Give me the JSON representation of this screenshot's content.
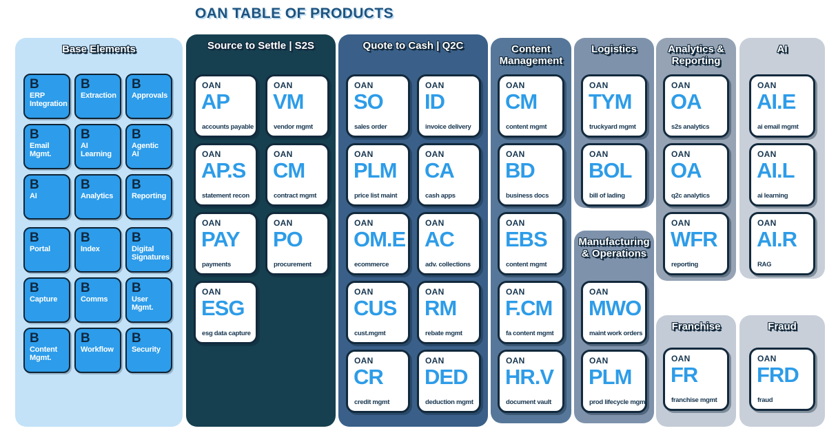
{
  "title": "OAN TABLE OF PRODUCTS",
  "colors": {
    "title_text": "#1E537F",
    "title_shadow": "#BFDDF2",
    "outline_navy": "#12293C",
    "tile_navy": "#16354F",
    "tile_code_blue": "#2D9CE8",
    "base_tile_blue": "#2D9CEA",
    "tile_bg": "#FFFFFF"
  },
  "panels": [
    {
      "id": "base-elements",
      "label": "Base Elements",
      "bg": "#C3E2F8",
      "tile_style": "base",
      "tiles": [
        {
          "symbol": "B",
          "label": "ERP Integration"
        },
        {
          "symbol": "B",
          "label": "Extraction"
        },
        {
          "symbol": "B",
          "label": "Approvals"
        },
        {
          "symbol": "B",
          "label": "Email Mgmt."
        },
        {
          "symbol": "B",
          "label": "AI Learning"
        },
        {
          "symbol": "B",
          "label": "Agentic AI"
        },
        {
          "symbol": "B",
          "label": "AI"
        },
        {
          "symbol": "B",
          "label": "Analytics"
        },
        {
          "symbol": "B",
          "label": "Reporting"
        },
        {
          "symbol": "B",
          "label": "Portal"
        },
        {
          "symbol": "B",
          "label": "Index"
        },
        {
          "symbol": "B",
          "label": "Digital Signatures"
        },
        {
          "symbol": "B",
          "label": "Capture"
        },
        {
          "symbol": "B",
          "label": "Comms"
        },
        {
          "symbol": "B",
          "label": "User Mgmt."
        },
        {
          "symbol": "B",
          "label": "Content Mgmt."
        },
        {
          "symbol": "B",
          "label": "Workflow"
        },
        {
          "symbol": "B",
          "label": "Security"
        }
      ]
    },
    {
      "id": "s2s",
      "label": "Source to Settle | S2S",
      "bg": "#16404F",
      "tile_style": "product",
      "tiles": [
        {
          "brand": "OAN",
          "code": "AP",
          "label": "accounts payable"
        },
        {
          "brand": "OAN",
          "code": "VM",
          "label": "vendor mgmt"
        },
        {
          "brand": "OAN",
          "code": "AP.S",
          "label": "statement recon"
        },
        {
          "brand": "OAN",
          "code": "CM",
          "label": "contract mgmt"
        },
        {
          "brand": "OAN",
          "code": "PAY",
          "label": "payments"
        },
        {
          "brand": "OAN",
          "code": "PO",
          "label": "procurement"
        },
        {
          "brand": "OAN",
          "code": "ESG",
          "label": "esg data capture"
        }
      ]
    },
    {
      "id": "q2c",
      "label": "Quote to Cash | Q2C",
      "bg": "#3A6089",
      "tile_style": "product",
      "tiles": [
        {
          "brand": "OAN",
          "code": "SO",
          "label": "sales order"
        },
        {
          "brand": "OAN",
          "code": "ID",
          "label": "invoice delivery"
        },
        {
          "brand": "OAN",
          "code": "PLM",
          "label": "price list maint"
        },
        {
          "brand": "OAN",
          "code": "CA",
          "label": "cash apps"
        },
        {
          "brand": "OAN",
          "code": "OM.E",
          "label": "ecommerce"
        },
        {
          "brand": "OAN",
          "code": "AC",
          "label": "adv. collections"
        },
        {
          "brand": "OAN",
          "code": "CUS",
          "label": "cust.mgmt"
        },
        {
          "brand": "OAN",
          "code": "RM",
          "label": "rebate mgmt"
        },
        {
          "brand": "OAN",
          "code": "CR",
          "label": "credit mgmt"
        },
        {
          "brand": "OAN",
          "code": "DED",
          "label": "deduction mgmt"
        }
      ]
    },
    {
      "id": "content-management",
      "label": "Content Management",
      "bg": "#567799",
      "tile_style": "product",
      "tiles": [
        {
          "brand": "OAN",
          "code": "CM",
          "label": "content mgmt"
        },
        {
          "brand": "OAN",
          "code": "BD",
          "label": "business docs"
        },
        {
          "brand": "OAN",
          "code": "EBS",
          "label": "content mgmt"
        },
        {
          "brand": "OAN",
          "code": "F.CM",
          "label": "fa content mgmt"
        },
        {
          "brand": "OAN",
          "code": "HR.V",
          "label": "document vault"
        }
      ]
    },
    {
      "id": "logistics",
      "label": "Logistics",
      "bg": "#7E92AB",
      "tile_style": "product",
      "tiles": [
        {
          "brand": "OAN",
          "code": "TYM",
          "label": "truckyard mgmt"
        },
        {
          "brand": "OAN",
          "code": "BOL",
          "label": "bill of lading"
        }
      ]
    },
    {
      "id": "manufacturing-operations",
      "label": "Manufacturing & Operations",
      "bg": "#7E92AB",
      "tile_style": "product",
      "tiles": [
        {
          "brand": "OAN",
          "code": "MWO",
          "label": "maint work orders"
        },
        {
          "brand": "OAN",
          "code": "PLM",
          "label": "prod lifecycle mgmt"
        }
      ]
    },
    {
      "id": "analytics-reporting",
      "label": "Analytics & Reporting",
      "bg": "#95A3B4",
      "tile_style": "product",
      "tiles": [
        {
          "brand": "OAN",
          "code": "OA",
          "label": "s2s analytics"
        },
        {
          "brand": "OAN",
          "code": "OA",
          "label": "q2c analytics"
        },
        {
          "brand": "OAN",
          "code": "WFR",
          "label": "reporting"
        }
      ]
    },
    {
      "id": "ai",
      "label": "AI",
      "bg": "#C8CFD9",
      "tile_style": "product",
      "tiles": [
        {
          "brand": "OAN",
          "code": "AI.E",
          "label": "ai email mgmt"
        },
        {
          "brand": "OAN",
          "code": "AI.L",
          "label": "ai learning"
        },
        {
          "brand": "OAN",
          "code": "AI.R",
          "label": "RAG"
        }
      ]
    },
    {
      "id": "franchise",
      "label": "Franchise",
      "bg": "#C3CBD6",
      "tile_style": "product",
      "tiles": [
        {
          "brand": "OAN",
          "code": "FR",
          "label": "franchise mgmt"
        }
      ]
    },
    {
      "id": "fraud",
      "label": "Fraud",
      "bg": "#C8CFD9",
      "tile_style": "product",
      "tiles": [
        {
          "brand": "OAN",
          "code": "FRD",
          "label": "fraud"
        }
      ]
    }
  ]
}
